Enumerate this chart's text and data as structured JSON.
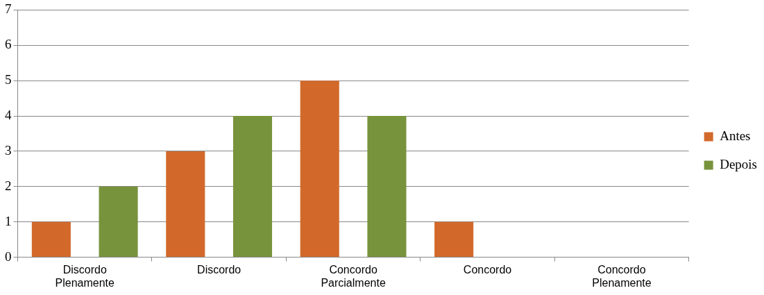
{
  "chart_data": {
    "type": "bar",
    "categories": [
      "Discordo Plenamente",
      "Discordo",
      "Concordo Parcialmente",
      "Concordo",
      "Concordo Plenamente"
    ],
    "series": [
      {
        "name": "Antes",
        "color": "#d2692b",
        "values": [
          1,
          3,
          5,
          1,
          0
        ]
      },
      {
        "name": "Depois",
        "color": "#77933c",
        "values": [
          2,
          4,
          4,
          0,
          0
        ]
      }
    ],
    "ylim": [
      0,
      7
    ],
    "yticks": [
      0,
      1,
      2,
      3,
      4,
      5,
      6,
      7
    ],
    "grid": "y",
    "legend": "right"
  }
}
